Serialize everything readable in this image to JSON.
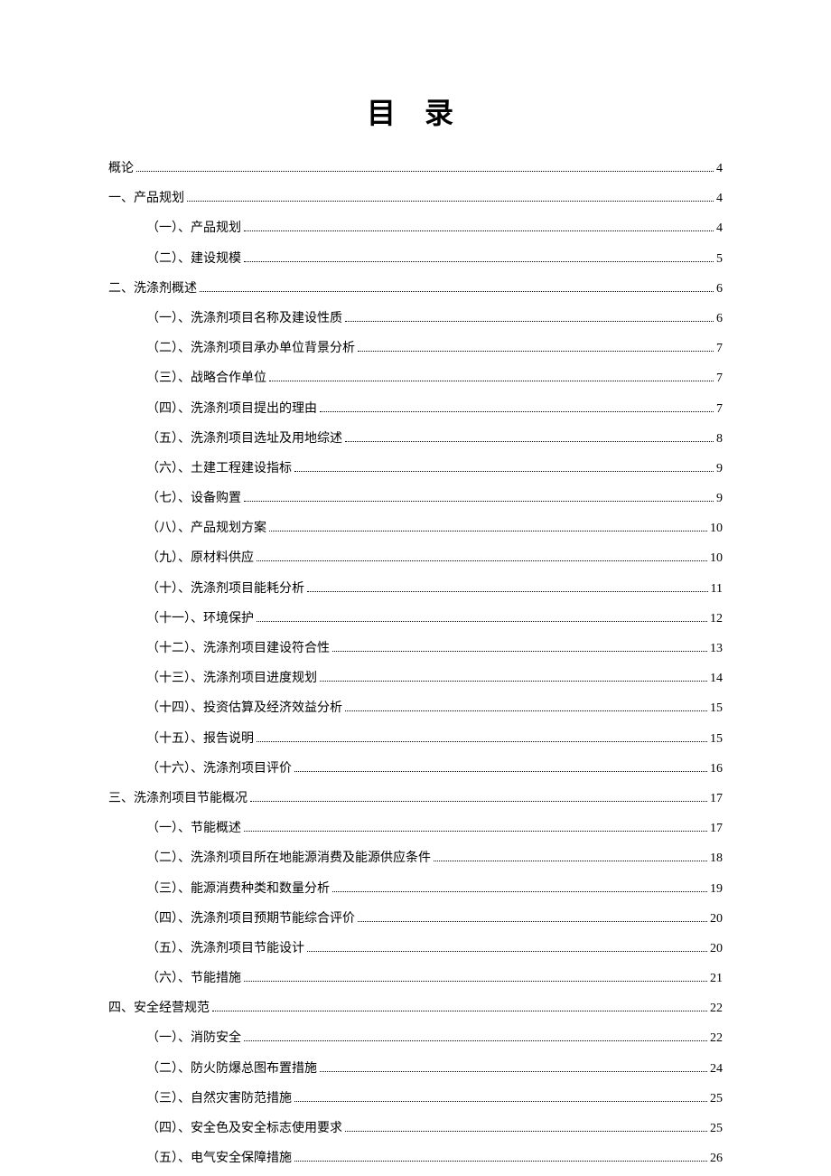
{
  "title": "目 录",
  "entries": [
    {
      "level": 0,
      "label": "概论",
      "page": "4"
    },
    {
      "level": 0,
      "label": "一、产品规划",
      "page": "4"
    },
    {
      "level": 1,
      "label": "（一）、产品规划",
      "page": "4"
    },
    {
      "level": 1,
      "label": "（二）、建设规模",
      "page": "5"
    },
    {
      "level": 0,
      "label": "二、洗涤剂概述",
      "page": "6"
    },
    {
      "level": 1,
      "label": "（一）、洗涤剂项目名称及建设性质",
      "page": "6"
    },
    {
      "level": 1,
      "label": "（二）、洗涤剂项目承办单位背景分析",
      "page": "7"
    },
    {
      "level": 1,
      "label": "（三）、战略合作单位",
      "page": "7"
    },
    {
      "level": 1,
      "label": "（四）、洗涤剂项目提出的理由",
      "page": "7"
    },
    {
      "level": 1,
      "label": "（五）、洗涤剂项目选址及用地综述",
      "page": "8"
    },
    {
      "level": 1,
      "label": "（六）、土建工程建设指标",
      "page": "9"
    },
    {
      "level": 1,
      "label": "（七）、设备购置",
      "page": "9"
    },
    {
      "level": 1,
      "label": "（八）、产品规划方案",
      "page": "10"
    },
    {
      "level": 1,
      "label": "（九）、原材料供应",
      "page": "10"
    },
    {
      "level": 1,
      "label": "（十）、洗涤剂项目能耗分析",
      "page": "11"
    },
    {
      "level": 1,
      "label": "（十一）、环境保护",
      "page": "12"
    },
    {
      "level": 1,
      "label": "（十二）、洗涤剂项目建设符合性",
      "page": "13"
    },
    {
      "level": 1,
      "label": "（十三）、洗涤剂项目进度规划",
      "page": "14"
    },
    {
      "level": 1,
      "label": "（十四）、投资估算及经济效益分析",
      "page": "15"
    },
    {
      "level": 1,
      "label": "（十五）、报告说明",
      "page": "15"
    },
    {
      "level": 1,
      "label": "（十六）、洗涤剂项目评价",
      "page": "16"
    },
    {
      "level": 0,
      "label": "三、洗涤剂项目节能概况",
      "page": "17"
    },
    {
      "level": 1,
      "label": "（一）、节能概述",
      "page": "17"
    },
    {
      "level": 1,
      "label": "（二）、洗涤剂项目所在地能源消费及能源供应条件",
      "page": "18"
    },
    {
      "level": 1,
      "label": "（三）、能源消费种类和数量分析",
      "page": "19"
    },
    {
      "level": 1,
      "label": "（四）、洗涤剂项目预期节能综合评价",
      "page": "20"
    },
    {
      "level": 1,
      "label": "（五）、洗涤剂项目节能设计",
      "page": "20"
    },
    {
      "level": 1,
      "label": "（六）、节能措施",
      "page": "21"
    },
    {
      "level": 0,
      "label": "四、安全经营规范",
      "page": "22"
    },
    {
      "level": 1,
      "label": "（一）、消防安全",
      "page": "22"
    },
    {
      "level": 1,
      "label": "（二）、防火防爆总图布置措施",
      "page": "24"
    },
    {
      "level": 1,
      "label": "（三）、自然灾害防范措施",
      "page": "25"
    },
    {
      "level": 1,
      "label": "（四）、安全色及安全标志使用要求",
      "page": "25"
    },
    {
      "level": 1,
      "label": "（五）、电气安全保障措施",
      "page": "26"
    }
  ]
}
